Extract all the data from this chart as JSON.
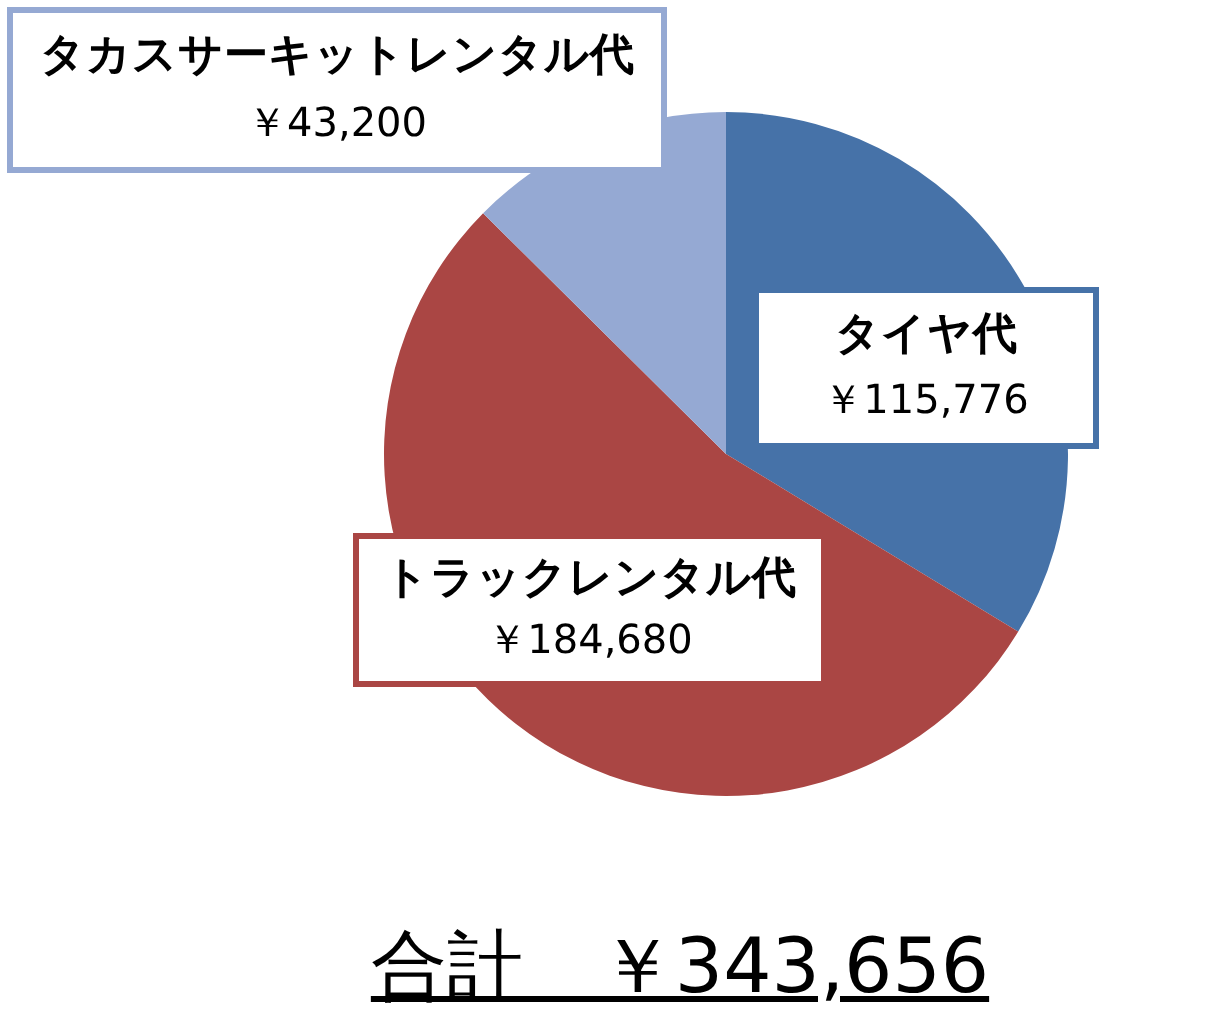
{
  "chart_data": {
    "type": "pie",
    "categories": [
      "タイヤ代",
      "トラックレンタル代",
      "タカスサーキットレンタル代"
    ],
    "values": [
      115776,
      184680,
      43200
    ],
    "value_labels": [
      "￥115,776",
      "￥184,680",
      "￥43,200"
    ],
    "colors": [
      "#4672a8",
      "#aa4644",
      "#95a9d3"
    ],
    "annotations": [
      "合計　￥343,656"
    ],
    "legend": false
  }
}
